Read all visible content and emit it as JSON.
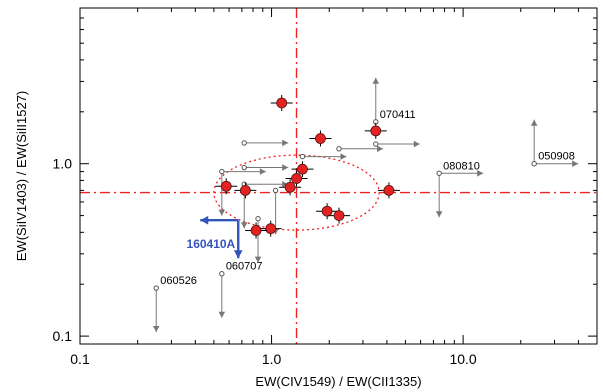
{
  "chart_data": {
    "type": "scatter",
    "xlabel": "EW(CIV1549) / EW(CII1335)",
    "ylabel": "EW(SiIV1403) / EW(SiII1527)",
    "xscale": "log",
    "yscale": "log",
    "xlim": [
      0.1,
      50
    ],
    "ylim": [
      0.09,
      8
    ],
    "xticks": [
      {
        "value": 0.1,
        "label": "0.1"
      },
      {
        "value": 1.0,
        "label": "1.0"
      },
      {
        "value": 10.0,
        "label": "10.0"
      }
    ],
    "yticks": [
      {
        "value": 0.1,
        "label": "0.1"
      },
      {
        "value": 1.0,
        "label": "1.0"
      }
    ],
    "reference_lines": {
      "x": 1.35,
      "y": 0.68,
      "color": "#ee2222",
      "style": "dash-dot"
    },
    "ellipse": {
      "center": [
        1.35,
        0.68
      ],
      "x_factor": 2.7,
      "y_factor": 1.65,
      "color": "#ee2222",
      "style": "dotted"
    },
    "detections": [
      {
        "x": 1.13,
        "y": 2.25
      },
      {
        "x": 1.8,
        "y": 1.4
      },
      {
        "x": 3.5,
        "y": 1.55
      },
      {
        "x": 1.45,
        "y": 0.93
      },
      {
        "x": 1.25,
        "y": 0.73
      },
      {
        "x": 0.58,
        "y": 0.74
      },
      {
        "x": 0.73,
        "y": 0.7
      },
      {
        "x": 1.35,
        "y": 0.82
      },
      {
        "x": 4.1,
        "y": 0.7
      },
      {
        "x": 1.95,
        "y": 0.53
      },
      {
        "x": 2.25,
        "y": 0.5
      },
      {
        "x": 0.99,
        "y": 0.42
      },
      {
        "x": 0.83,
        "y": 0.41
      }
    ],
    "limits": [
      {
        "x": 0.25,
        "y": 0.19,
        "arrows": [
          "down"
        ],
        "label": "060526"
      },
      {
        "x": 0.55,
        "y": 0.23,
        "arrows": [
          "down"
        ],
        "label": "060707"
      },
      {
        "x": 0.55,
        "y": 0.9,
        "arrows": [
          "right",
          "down"
        ]
      },
      {
        "x": 0.72,
        "y": 1.32,
        "arrows": [
          "right"
        ]
      },
      {
        "x": 0.72,
        "y": 0.95,
        "arrows": [
          "right"
        ]
      },
      {
        "x": 0.72,
        "y": 0.76,
        "arrows": [
          "right",
          "down"
        ]
      },
      {
        "x": 0.85,
        "y": 0.48,
        "arrows": [
          "down"
        ]
      },
      {
        "x": 1.05,
        "y": 0.7,
        "arrows": [
          "down"
        ]
      },
      {
        "x": 1.45,
        "y": 1.1,
        "arrows": [
          "right"
        ]
      },
      {
        "x": 2.25,
        "y": 1.22,
        "arrows": [
          "right"
        ]
      },
      {
        "x": 3.5,
        "y": 1.75,
        "arrows": [
          "up"
        ],
        "label": "070411"
      },
      {
        "x": 3.5,
        "y": 1.3,
        "arrows": [
          "right"
        ]
      },
      {
        "x": 7.5,
        "y": 0.88,
        "arrows": [
          "right",
          "down"
        ],
        "label": "080810"
      },
      {
        "x": 23.5,
        "y": 1.0,
        "arrows": [
          "up",
          "right"
        ],
        "label": "050908"
      }
    ],
    "highlight": {
      "x": 0.67,
      "y": 0.47,
      "arrows": [
        "left",
        "down"
      ],
      "label": "160410A",
      "color": "#3355bb"
    }
  }
}
